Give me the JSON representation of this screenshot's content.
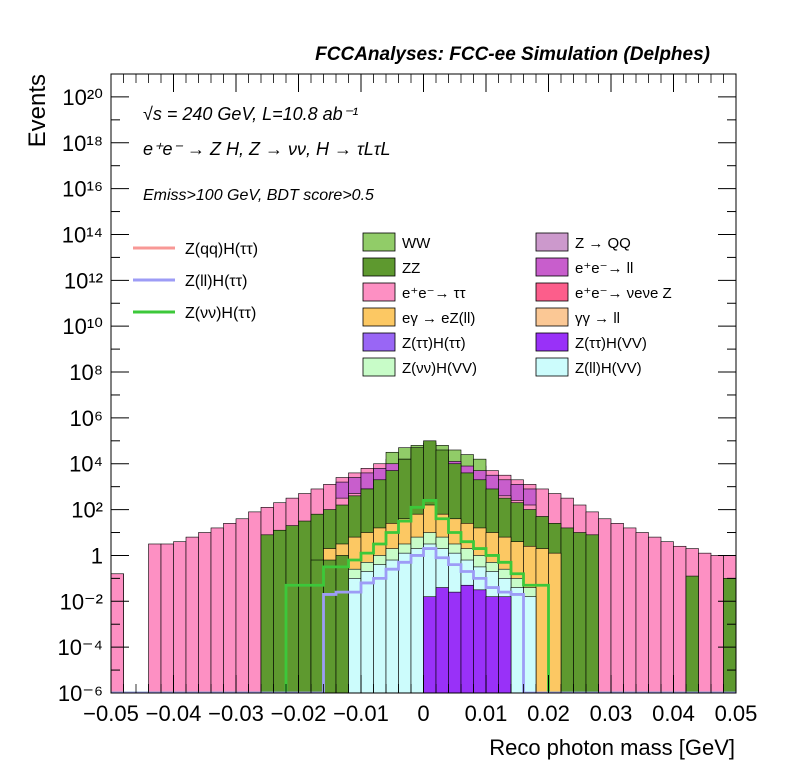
{
  "header": {
    "title": "FCCAnalyses: FCC-ee Simulation (Delphes)"
  },
  "annotations": {
    "line1": "√s = 240 GeV, L=10.8 ab⁻¹",
    "line2": "e⁺e⁻ → Z H, Z → νν, H → τLτL",
    "line3": "Emiss>100 GeV, BDT score>0.5"
  },
  "chart_data": {
    "type": "histogram",
    "xlabel": "Reco photon mass [GeV]",
    "ylabel": "Events",
    "xlim": [
      -0.05,
      0.05
    ],
    "ylim": [
      1e-06,
      1e+21
    ],
    "yscale": "log",
    "grid": false,
    "x_ticks": [
      "−0.05",
      "−0.04",
      "−0.03",
      "−0.02",
      "−0.01",
      "0",
      "0.01",
      "0.02",
      "0.03",
      "0.04",
      "0.05"
    ],
    "y_ticks": [
      {
        "value": 1e-06,
        "label": "10⁻⁶"
      },
      {
        "value": 0.0001,
        "label": "10⁻⁴"
      },
      {
        "value": 0.01,
        "label": "10⁻²"
      },
      {
        "value": 1,
        "label": "1"
      },
      {
        "value": 100.0,
        "label": "10²"
      },
      {
        "value": 10000.0,
        "label": "10⁴"
      },
      {
        "value": 1000000.0,
        "label": "10⁶"
      },
      {
        "value": 100000000.0,
        "label": "10⁸"
      },
      {
        "value": 10000000000.0,
        "label": "10¹⁰"
      },
      {
        "value": 1000000000000.0,
        "label": "10¹²"
      },
      {
        "value": 100000000000000.0,
        "label": "10¹⁴"
      },
      {
        "value": 1e+16,
        "label": "10¹⁶"
      },
      {
        "value": 1e+18,
        "label": "10¹⁸"
      },
      {
        "value": 1e+20,
        "label": "10²⁰"
      }
    ],
    "bins": 50,
    "stack_order_bottom_to_top": [
      "Z(ll)H(VV)",
      "Z(νν)H(VV)",
      "Z(ττ)H(VV)",
      "Z(ττ)H(ττ)",
      "γγ → ll",
      "eγ → eZ(ll)",
      "e⁺e⁻→ νeνe Z",
      "e⁺e⁻→ ττ",
      "e⁺e⁻→ ll",
      "ZZ",
      "Z → QQ",
      "WW"
    ],
    "stack_cumulative_log10": {
      "ZllHVV": [
        -6,
        -6,
        -6,
        -6,
        -6,
        -6,
        -6,
        -6,
        -6,
        -6,
        -6,
        -6,
        -6,
        -6,
        -6,
        -6,
        -6,
        -1.8,
        -1.4,
        -1,
        -0.7,
        -0.4,
        -0.2,
        0.1,
        0.3,
        0.5,
        0.3,
        0.1,
        -0.2,
        -0.5,
        -0.7,
        -1,
        -1.4,
        -1.8,
        -6,
        -6,
        -6,
        -6,
        -6,
        -6,
        -6,
        -6,
        -6,
        -6,
        -6,
        -6,
        -6,
        -6,
        -6,
        -6
      ],
      "ZnnHVV": [
        -6,
        -6,
        -6,
        -6,
        -6,
        -6,
        -6,
        -6,
        -6,
        -6,
        -6,
        -6,
        -6,
        -6,
        -6,
        -6,
        -6,
        -1.6,
        -1.2,
        -0.8,
        -0.5,
        -0.2,
        0.1,
        0.3,
        0.6,
        0.8,
        0.6,
        0.3,
        0.1,
        -0.2,
        -0.5,
        -0.8,
        -1.2,
        -1.6,
        -6,
        -6,
        -6,
        -6,
        -6,
        -6,
        -6,
        -6,
        -6,
        -6,
        -6,
        -6,
        -6,
        -6,
        -6,
        -6
      ],
      "ZttHVV": [
        -6,
        -6,
        -6,
        -6,
        -6,
        -6,
        -6,
        -6,
        -6,
        -6,
        -6,
        -6,
        -6,
        -6,
        -6,
        -6,
        -6,
        -1.6,
        -1.2,
        -0.8,
        -0.5,
        -0.2,
        0.1,
        0.3,
        0.6,
        0.8,
        0.6,
        0.3,
        0.1,
        -0.2,
        -0.5,
        -0.8,
        -1.2,
        -1.6,
        -6,
        -6,
        -6,
        -6,
        -6,
        -6,
        -6,
        -6,
        -6,
        -6,
        -6,
        -6,
        -6,
        -6,
        -6,
        -6
      ],
      "ZttHtt": [
        -6,
        -6,
        -6,
        -6,
        -6,
        -6,
        -6,
        -6,
        -6,
        -6,
        -6,
        -6,
        -6,
        -6,
        -6,
        -6,
        -6,
        -1.6,
        -1.2,
        -0.8,
        -0.5,
        -0.2,
        0.1,
        0.3,
        0.6,
        0.8,
        0.6,
        0.3,
        0.1,
        -0.2,
        -0.5,
        -0.8,
        -1.2,
        -1.6,
        -6,
        -6,
        -6,
        -6,
        -6,
        -6,
        -6,
        -6,
        -6,
        -6,
        -6,
        -6,
        -6,
        -6,
        -6,
        -6
      ],
      "aa_ll": [
        -6,
        -6,
        -6,
        -6,
        -6,
        -6,
        -6,
        -6,
        -6,
        -6,
        -6,
        -6,
        -6,
        -6,
        -6,
        -6,
        -6,
        -1.6,
        -1.2,
        -0.8,
        -0.5,
        -0.2,
        0.1,
        0.3,
        0.6,
        0.8,
        0.6,
        0.3,
        0.1,
        -0.2,
        -0.5,
        -0.8,
        -1.2,
        -1.6,
        -6,
        -6,
        -6,
        -6,
        -6,
        -6,
        -6,
        -6,
        -6,
        -6,
        -6,
        -6,
        -6,
        -6,
        -6,
        -6
      ],
      "ea_eZll": [
        -6,
        -6,
        -6,
        -6,
        -6,
        -6,
        -6,
        -6,
        -6,
        -6,
        -6,
        -6,
        -6,
        -6,
        -6,
        -6,
        -2,
        -0.3,
        -0.1,
        0.2,
        0.4,
        0.6,
        0.8,
        1,
        1.2,
        1.6,
        1.2,
        1,
        0.8,
        0.6,
        0.4,
        0.2,
        0,
        -0.2,
        -0.3,
        -0.5,
        -6,
        -6,
        -6,
        -6,
        -6,
        -6,
        -6,
        -6,
        -6,
        -6,
        -6,
        -6,
        -6,
        -6
      ],
      "ee_nnZ": [
        -6,
        -6,
        -6,
        -6,
        -6,
        -6,
        -6,
        -6,
        -6,
        -6,
        -6,
        -6,
        -6,
        -6,
        -0.6,
        -0.3,
        0,
        0.3,
        0.5,
        0.7,
        1,
        1.2,
        1.5,
        1.8,
        2.2,
        2.8,
        2.3,
        1.9,
        1.6,
        1.3,
        1.0,
        0.7,
        0.4,
        0.1,
        -0.1,
        -0.4,
        -6,
        -6,
        -6,
        -6,
        -6,
        -6,
        -6,
        -6,
        -6,
        -6,
        -6,
        -6,
        -6,
        -6
      ],
      "ee_tt": [
        -6,
        -6,
        -6,
        -6,
        -6,
        -6,
        -6,
        -6,
        -6,
        -6,
        -6,
        -0.6,
        -0.4,
        -0.1,
        0.2,
        0.5,
        0.8,
        1.1,
        1.4,
        1.7,
        2.0,
        2.3,
        2.6,
        2.9,
        3.3,
        3.8,
        3.3,
        3.0,
        2.6,
        2.3,
        2.0,
        1.7,
        1.4,
        1.1,
        0.8,
        0.5,
        0.2,
        -0.1,
        -0.3,
        -0.5,
        -0.6,
        -6,
        -6,
        -6,
        -6,
        -6,
        -6,
        -6,
        -6,
        -6
      ],
      "ee_ll": [
        -6,
        -6,
        -6,
        -6,
        -6,
        -6,
        -6,
        -6,
        -6,
        -6,
        -0.9,
        -0.6,
        -0.3,
        0,
        0.3,
        0.6,
        0.9,
        1.2,
        1.5,
        1.8,
        2.1,
        2.4,
        2.7,
        3.0,
        3.4,
        3.9,
        3.4,
        3.0,
        2.7,
        2.4,
        2.1,
        1.8,
        1.5,
        1.2,
        0.9,
        0.6,
        0.3,
        0,
        -0.3,
        -0.6,
        -0.9,
        -6,
        -6,
        -6,
        -6,
        -6,
        -6,
        -6,
        -6,
        -6
      ],
      "ZZ": [
        -6,
        -6,
        -6,
        -6,
        -6,
        -6,
        -6,
        -6,
        -6,
        -6,
        -6,
        -6,
        -6,
        -6,
        -6,
        -6,
        -6,
        -6,
        -6,
        -6,
        -6,
        -6,
        -6,
        -6,
        -6,
        -6,
        -6,
        -6,
        -6,
        -6,
        -6,
        -6,
        -6,
        -6,
        -6,
        -6,
        -6,
        -6,
        -6,
        -6,
        -6,
        -6,
        -6,
        -6,
        -6,
        -6,
        -6,
        -6,
        -6,
        -6
      ],
      "ZQQ": [
        -6,
        -6,
        -6,
        -6,
        -6,
        -6,
        -6,
        -6,
        -6,
        -6,
        -6,
        -6,
        -6,
        -6,
        -6,
        -6,
        -6,
        -6,
        -6,
        -6,
        -6,
        -6,
        -6,
        -6,
        -6,
        -6,
        -6,
        -6,
        -6,
        -6,
        -6,
        -6,
        -6,
        -6,
        -6,
        -6,
        -6,
        -6,
        -6,
        -6,
        -6,
        -6,
        -6,
        -6,
        -6,
        -6,
        -6,
        -6,
        -6,
        -6
      ],
      "WW": [
        -1.8,
        -6,
        -6,
        -6,
        -6,
        -6,
        -6,
        -6,
        -6,
        -6,
        -6,
        -6,
        -6,
        -6,
        -6,
        -6,
        -6,
        -6,
        -6,
        -6,
        -6,
        -6,
        -6,
        -6,
        -6,
        -6,
        -6,
        -6,
        -6,
        -6,
        -6,
        -6,
        -6,
        -6,
        -6,
        -6,
        -6,
        -6,
        -6,
        -6,
        -6,
        -6,
        -6,
        -6,
        -6,
        -6,
        -6,
        -6,
        -6,
        -6
      ]
    },
    "stack_totals_log10": {
      "pink_envelope": [
        -0.8,
        -6,
        -6,
        0.5,
        0.5,
        0.6,
        0.8,
        1.0,
        1.2,
        1.4,
        1.6,
        1.9,
        2.1,
        2.3,
        2.5,
        2.7,
        2.9,
        3.1,
        3.4,
        3.6,
        3.8,
        4.0,
        4.2,
        4.4,
        4.5,
        4.6,
        4.5,
        4.3,
        4.1,
        3.9,
        3.7,
        3.5,
        3.3,
        3.1,
        2.9,
        2.7,
        2.5,
        2.2,
        1.9,
        1.6,
        1.4,
        1.2,
        1.0,
        0.8,
        0.6,
        0.4,
        0.3,
        0.1,
        0.0,
        0.0
      ],
      "green_envelope": [
        -6,
        -6,
        -6,
        -6,
        -6,
        -6,
        -6,
        -6,
        -6,
        -6,
        -6,
        -6,
        0.9,
        1.1,
        1.3,
        1.5,
        1.8,
        2.0,
        2.2,
        2.6,
        2.9,
        3.3,
        3.7,
        4.2,
        4.7,
        5.0,
        4.6,
        4.0,
        3.6,
        3.3,
        2.9,
        2.5,
        2.3,
        2.0,
        1.7,
        1.4,
        1.2,
        1.0,
        0.9,
        -6,
        -6,
        -6,
        -6,
        -6,
        -6,
        -6,
        -6,
        -6,
        -6,
        -6
      ]
    },
    "overlays": [
      {
        "name": "Z(qq)H(ττ)",
        "color": "#f89896",
        "values_log10": [
          -6,
          -6,
          -6,
          -6,
          -6,
          -6,
          -6,
          -6,
          -6,
          -6,
          -6,
          -6,
          -6,
          -6,
          -6,
          -6,
          -6,
          -6,
          -6,
          -6,
          -6,
          -6,
          -6,
          -6,
          -6,
          -6,
          -6,
          -6,
          -6,
          -6,
          -6,
          -6,
          -6,
          -6,
          -6,
          -6,
          -6,
          -6,
          -6,
          -6,
          -6,
          -6,
          -6,
          -6,
          -6,
          -6,
          -6,
          -6,
          -6,
          -6
        ]
      },
      {
        "name": "Z(ll)H(ττ)",
        "color": "#9d9cf6",
        "values_log10": [
          -6,
          -6,
          -6,
          -6,
          -6,
          -6,
          -6,
          -6,
          -6,
          -6,
          -6,
          -6,
          -6,
          -6,
          -6,
          -6,
          -6,
          -6,
          -6,
          -6,
          -6,
          -6,
          -6,
          -6,
          -6,
          -6,
          -6,
          -6,
          -6,
          -6,
          -6,
          -6,
          -6,
          -6,
          -6,
          -6,
          -6,
          -6,
          -6,
          -6,
          -6,
          -6,
          -6,
          -6,
          -6,
          -6,
          -6,
          -6,
          -6,
          -6
        ]
      },
      {
        "name": "Z(νν)H(ττ)",
        "color": "#3cc83a",
        "values_log10": [
          -6,
          -6,
          -6,
          -6,
          -6,
          -6,
          -6,
          -6,
          -6,
          -6,
          -6,
          -6,
          -6,
          -6,
          -6,
          -6,
          -6,
          -6,
          -6,
          -6,
          -6,
          -6,
          -6,
          -6,
          -6,
          -6,
          -6,
          -6,
          -6,
          -6,
          -6,
          -6,
          -6,
          -6,
          -6,
          -6,
          -6,
          -6,
          -6,
          -6,
          -6,
          -6,
          -6,
          -6,
          -6,
          -6,
          -6,
          -6,
          -6,
          -6
        ]
      }
    ],
    "legend_lines": [
      {
        "name": "Z(qq)H(ττ)",
        "color": "#f89896"
      },
      {
        "name": "Z(ll)H(ττ)",
        "color": "#9d9cf6"
      },
      {
        "name": "Z(νν)H(ττ)",
        "color": "#3cc83a"
      }
    ],
    "legend_fills": [
      {
        "name": "WW",
        "color": "#91cc68"
      },
      {
        "name": "Z → QQ",
        "color": "#cc99cc"
      },
      {
        "name": "ZZ",
        "color": "#5e992f"
      },
      {
        "name": "e⁺e⁻→ ll",
        "color": "#c85ecc"
      },
      {
        "name": "e⁺e⁻→ ττ",
        "color": "#fd90c3"
      },
      {
        "name": "e⁺e⁻→ νeνe Z",
        "color": "#fc5e8b"
      },
      {
        "name": "eγ → eZ(ll)",
        "color": "#fcc863"
      },
      {
        "name": "γγ → ll",
        "color": "#fbc895"
      },
      {
        "name": "Z(ττ)H(ττ)",
        "color": "#9966f5"
      },
      {
        "name": "Z(ττ)H(VV)",
        "color": "#9931f8"
      },
      {
        "name": "Z(νν)H(VV)",
        "color": "#c8fcc8"
      },
      {
        "name": "Z(ll)H(VV)",
        "color": "#ccfcfc"
      }
    ],
    "legend_placement": "top"
  }
}
